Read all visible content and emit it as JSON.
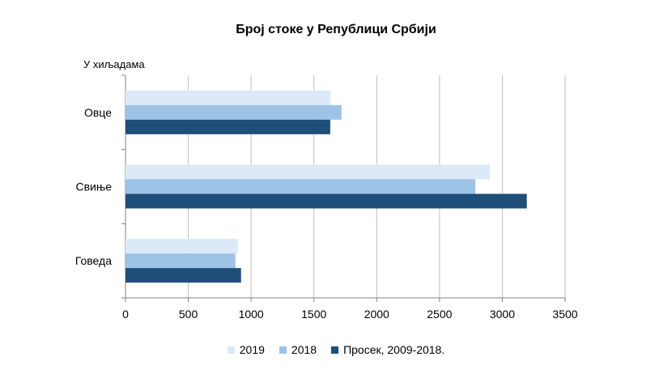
{
  "chart_data": {
    "type": "bar",
    "orientation": "horizontal",
    "title": "Број стоке у Републици Србији",
    "unit_label": "У хиљадама",
    "categories": [
      "Овце",
      "Свиње",
      "Говеда"
    ],
    "series": [
      {
        "name": "2019",
        "color": "#dce9f6",
        "values": [
          1630,
          2900,
          895
        ]
      },
      {
        "name": "2018",
        "color": "#9dc3e6",
        "values": [
          1720,
          2785,
          875
        ]
      },
      {
        "name": "Просек, 2009-2018.",
        "color": "#1f4e79",
        "values": [
          1630,
          3195,
          920
        ]
      }
    ],
    "xlim": [
      0,
      3500
    ],
    "xticks": [
      0,
      500,
      1000,
      1500,
      2000,
      2500,
      3000,
      3500
    ],
    "grid": true,
    "legend_position": "bottom"
  }
}
